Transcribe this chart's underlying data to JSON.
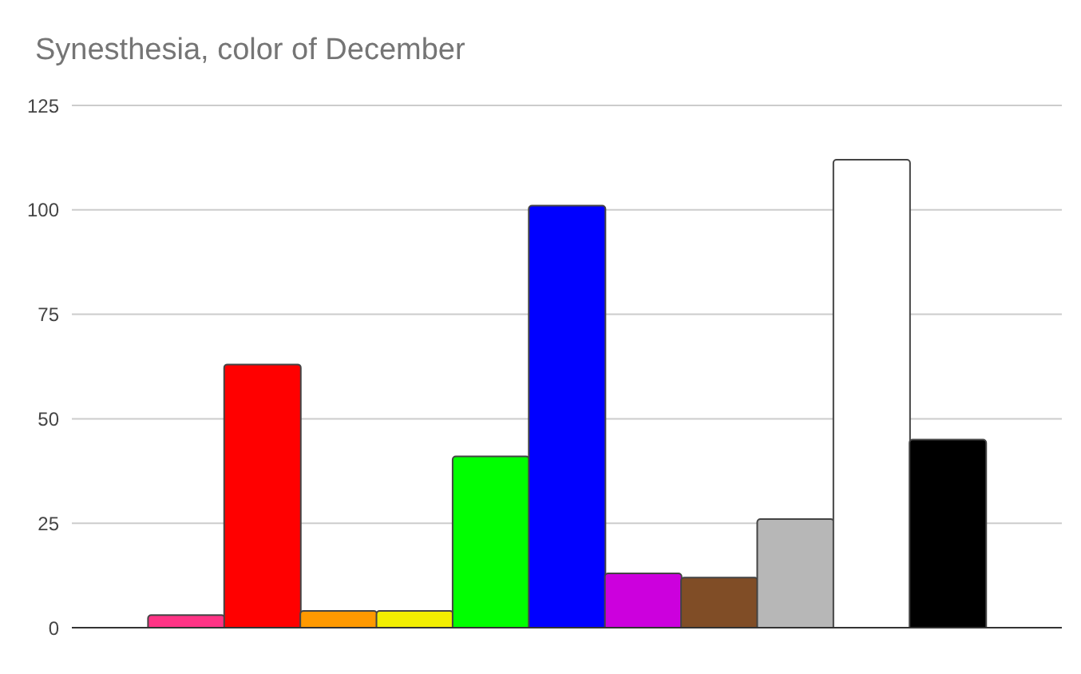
{
  "chart_data": {
    "type": "bar",
    "title": "Synesthesia, color of December",
    "categories": [
      null,
      null,
      null,
      null,
      null,
      null,
      null,
      null,
      null,
      null,
      null,
      null,
      null
    ],
    "values": [
      null,
      3,
      63,
      4,
      4,
      41,
      101,
      13,
      12,
      26,
      112,
      45,
      null
    ],
    "colors": [
      "#ffffff",
      "#ff3385",
      "#ff0000",
      "#ff9900",
      "#f2ee00",
      "#00ff00",
      "#0000ff",
      "#cc00dd",
      "#804d26",
      "#b7b7b7",
      "#ffffff",
      "#000000",
      "#ffffff"
    ],
    "ylim": [
      0,
      125
    ],
    "yticks": [
      0,
      25,
      50,
      75,
      100,
      125
    ],
    "grid": "y"
  }
}
